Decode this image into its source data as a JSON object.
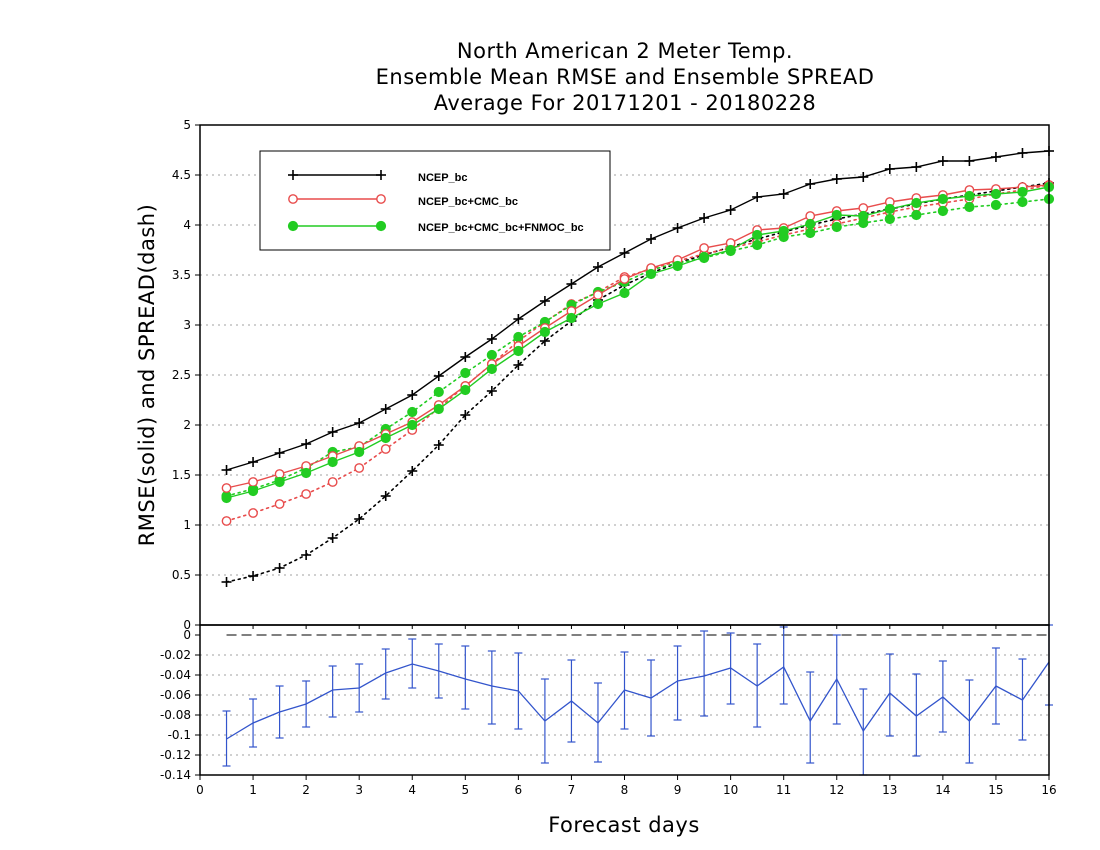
{
  "chart_data": [
    {
      "type": "line",
      "title_lines": [
        "North American 2 Meter Temp.",
        "Ensemble Mean RMSE and Ensemble SPREAD",
        "Average For 20171201 - 20180228"
      ],
      "ylabel": "RMSE(solid)  and  SPREAD(dash)",
      "xlim": [
        0,
        16
      ],
      "ylim": [
        0,
        5
      ],
      "yticks": [
        0,
        0.5,
        1,
        1.5,
        2,
        2.5,
        3,
        3.5,
        4,
        4.5,
        5
      ],
      "grid": true,
      "legend_position": "top-left",
      "x": [
        0.5,
        1,
        1.5,
        2,
        2.5,
        3,
        3.5,
        4,
        4.5,
        5,
        5.5,
        6,
        6.5,
        7,
        7.5,
        8,
        8.5,
        9,
        9.5,
        10,
        10.5,
        11,
        11.5,
        12,
        12.5,
        13,
        13.5,
        14,
        14.5,
        15,
        15.5,
        16
      ],
      "series": [
        {
          "name": "NCEP_bc",
          "color": "#000000",
          "marker": "plus",
          "rmse": [
            1.55,
            1.63,
            1.72,
            1.81,
            1.93,
            2.02,
            2.16,
            2.3,
            2.49,
            2.68,
            2.86,
            3.06,
            3.24,
            3.41,
            3.58,
            3.72,
            3.86,
            3.97,
            4.07,
            4.15,
            4.28,
            4.31,
            4.41,
            4.46,
            4.48,
            4.56,
            4.58,
            4.64,
            4.64,
            4.68,
            4.72,
            4.74
          ],
          "spread": [
            0.43,
            0.49,
            0.57,
            0.7,
            0.87,
            1.06,
            1.29,
            1.54,
            1.8,
            2.1,
            2.34,
            2.6,
            2.84,
            3.04,
            3.25,
            3.4,
            3.52,
            3.62,
            3.7,
            3.78,
            3.86,
            3.93,
            4.0,
            4.06,
            4.11,
            4.16,
            4.21,
            4.26,
            4.3,
            4.34,
            4.38,
            4.42
          ]
        },
        {
          "name": "NCEP_bc+CMC_bc",
          "color": "#e84c4c",
          "marker": "open-circle",
          "rmse": [
            1.37,
            1.43,
            1.51,
            1.59,
            1.69,
            1.79,
            1.91,
            2.03,
            2.2,
            2.39,
            2.61,
            2.79,
            2.97,
            3.14,
            3.3,
            3.46,
            3.57,
            3.65,
            3.77,
            3.82,
            3.95,
            3.97,
            4.09,
            4.14,
            4.17,
            4.23,
            4.27,
            4.3,
            4.35,
            4.36,
            4.38,
            4.4
          ],
          "spread": [
            1.04,
            1.12,
            1.21,
            1.31,
            1.43,
            1.57,
            1.76,
            1.95,
            2.17,
            2.39,
            2.61,
            2.84,
            3.03,
            3.21,
            3.33,
            3.48,
            3.56,
            3.64,
            3.71,
            3.77,
            3.83,
            3.9,
            3.96,
            4.01,
            4.07,
            4.13,
            4.18,
            4.22,
            4.26,
            4.31,
            4.35,
            4.4
          ]
        },
        {
          "name": "NCEP_bc+CMC_bc+FNMOC_bc",
          "color": "#22cc22",
          "marker": "filled-circle",
          "rmse": [
            1.27,
            1.34,
            1.43,
            1.52,
            1.63,
            1.73,
            1.87,
            2.0,
            2.16,
            2.35,
            2.56,
            2.74,
            2.93,
            3.07,
            3.21,
            3.32,
            3.51,
            3.59,
            3.68,
            3.75,
            3.9,
            3.94,
            4.01,
            4.1,
            4.09,
            4.16,
            4.22,
            4.26,
            4.29,
            4.31,
            4.33,
            4.38
          ],
          "spread": [
            1.29,
            1.36,
            1.45,
            1.57,
            1.73,
            1.78,
            1.96,
            2.13,
            2.33,
            2.52,
            2.7,
            2.88,
            3.03,
            3.2,
            3.33,
            3.43,
            3.55,
            3.62,
            3.67,
            3.74,
            3.8,
            3.88,
            3.92,
            3.98,
            4.02,
            4.06,
            4.1,
            4.14,
            4.18,
            4.2,
            4.23,
            4.26
          ]
        }
      ]
    },
    {
      "type": "line",
      "title": "",
      "xlabel": "Forecast days",
      "xlim": [
        0,
        16
      ],
      "xticks": [
        0,
        1,
        2,
        3,
        4,
        5,
        6,
        7,
        8,
        9,
        10,
        11,
        12,
        13,
        14,
        15,
        16
      ],
      "ylim": [
        -0.14,
        0.01
      ],
      "yticks": [
        0,
        -0.02,
        -0.04,
        -0.06,
        -0.08,
        -0.1,
        -0.12,
        -0.14
      ],
      "ytick_labels": [
        "0",
        "-0.02",
        "-0.04",
        "-0.06",
        "-0.08",
        "-0.1",
        "-0.12",
        "-0.14"
      ],
      "grid": true,
      "zero_line": true,
      "color": "#3355cc",
      "x": [
        0.5,
        1,
        1.5,
        2,
        2.5,
        3,
        3.5,
        4,
        4.5,
        5,
        5.5,
        6,
        6.5,
        7,
        7.5,
        8,
        8.5,
        9,
        9.5,
        10,
        10.5,
        11,
        11.5,
        12,
        12.5,
        13,
        13.5,
        14,
        14.5,
        15,
        15.5,
        16
      ],
      "values": [
        -0.104,
        -0.088,
        -0.077,
        -0.069,
        -0.055,
        -0.053,
        -0.038,
        -0.029,
        -0.036,
        -0.044,
        -0.051,
        -0.056,
        -0.086,
        -0.066,
        -0.088,
        -0.055,
        -0.063,
        -0.046,
        -0.041,
        -0.033,
        -0.051,
        -0.032,
        -0.086,
        -0.044,
        -0.096,
        -0.058,
        -0.081,
        -0.062,
        -0.086,
        -0.051,
        -0.065,
        -0.027
      ],
      "err_low": [
        -0.131,
        -0.112,
        -0.103,
        -0.092,
        -0.082,
        -0.077,
        -0.064,
        -0.053,
        -0.063,
        -0.074,
        -0.089,
        -0.094,
        -0.128,
        -0.107,
        -0.127,
        -0.094,
        -0.101,
        -0.085,
        -0.081,
        -0.069,
        -0.092,
        -0.069,
        -0.128,
        -0.089,
        -0.14,
        -0.101,
        -0.121,
        -0.097,
        -0.128,
        -0.089,
        -0.105,
        -0.07
      ],
      "err_high": [
        -0.076,
        -0.064,
        -0.051,
        -0.046,
        -0.031,
        -0.029,
        -0.014,
        -0.004,
        -0.009,
        -0.011,
        -0.016,
        -0.018,
        -0.044,
        -0.025,
        -0.048,
        -0.017,
        -0.025,
        -0.011,
        0.004,
        0.002,
        -0.009,
        0.008,
        -0.037,
        0,
        -0.054,
        -0.019,
        -0.039,
        -0.026,
        -0.045,
        -0.013,
        -0.024,
        0.013
      ]
    }
  ]
}
